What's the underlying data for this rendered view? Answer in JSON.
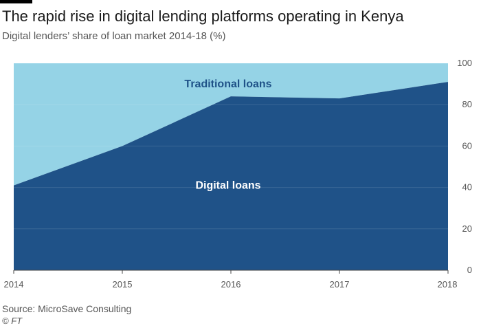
{
  "header": {
    "title": "The rapid rise in digital lending platforms operating in Kenya",
    "subtitle": "Digital lenders’ share of loan market 2014-18 (%)"
  },
  "footer": {
    "source": "Source: MicroSave Consulting",
    "credit": "© FT"
  },
  "chart_data": {
    "type": "area",
    "title": "The rapid rise in digital lending platforms operating in Kenya",
    "subtitle": "Digital lenders’ share of loan market 2014-18 (%)",
    "xlabel": "",
    "ylabel": "",
    "x": [
      "2014",
      "2015",
      "2016",
      "2017",
      "2018"
    ],
    "ylim": [
      0,
      100
    ],
    "yticks": [
      0,
      20,
      40,
      60,
      80,
      100
    ],
    "y_axis_position": "right",
    "grid": true,
    "stacked": true,
    "series": [
      {
        "name": "Digital loans",
        "values": [
          41,
          60,
          84,
          83,
          91
        ],
        "color": "#1f5288"
      },
      {
        "name": "Traditional loans",
        "values": [
          59,
          40,
          16,
          17,
          9
        ],
        "color": "#95d3e6"
      }
    ]
  }
}
